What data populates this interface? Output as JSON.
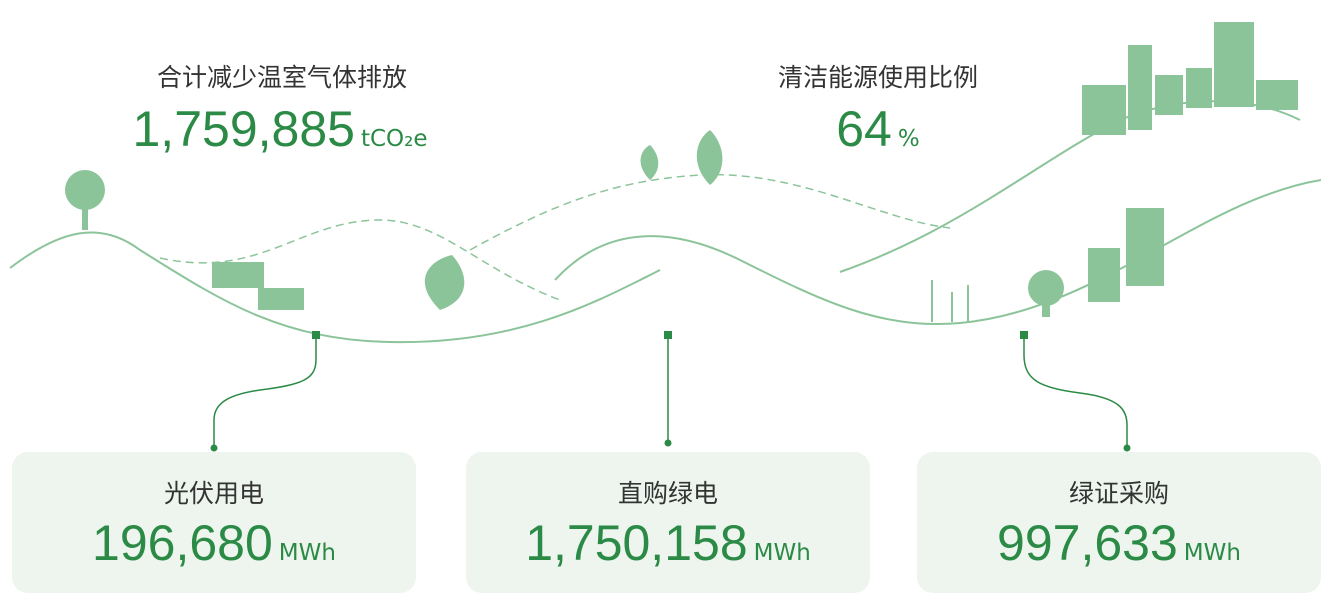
{
  "summary": [
    {
      "title": "合计减少温室气体排放",
      "value": "1,759,885",
      "unit": "tCO₂e"
    },
    {
      "title": "清洁能源使用比例",
      "value": "64",
      "unit": "%"
    }
  ],
  "cards": [
    {
      "title": "光伏用电",
      "value": "196,680",
      "unit": "MWh"
    },
    {
      "title": "直购绿电",
      "value": "1,750,158",
      "unit": "MWh"
    },
    {
      "title": "绿证采购",
      "value": "997,633",
      "unit": "MWh"
    }
  ]
}
